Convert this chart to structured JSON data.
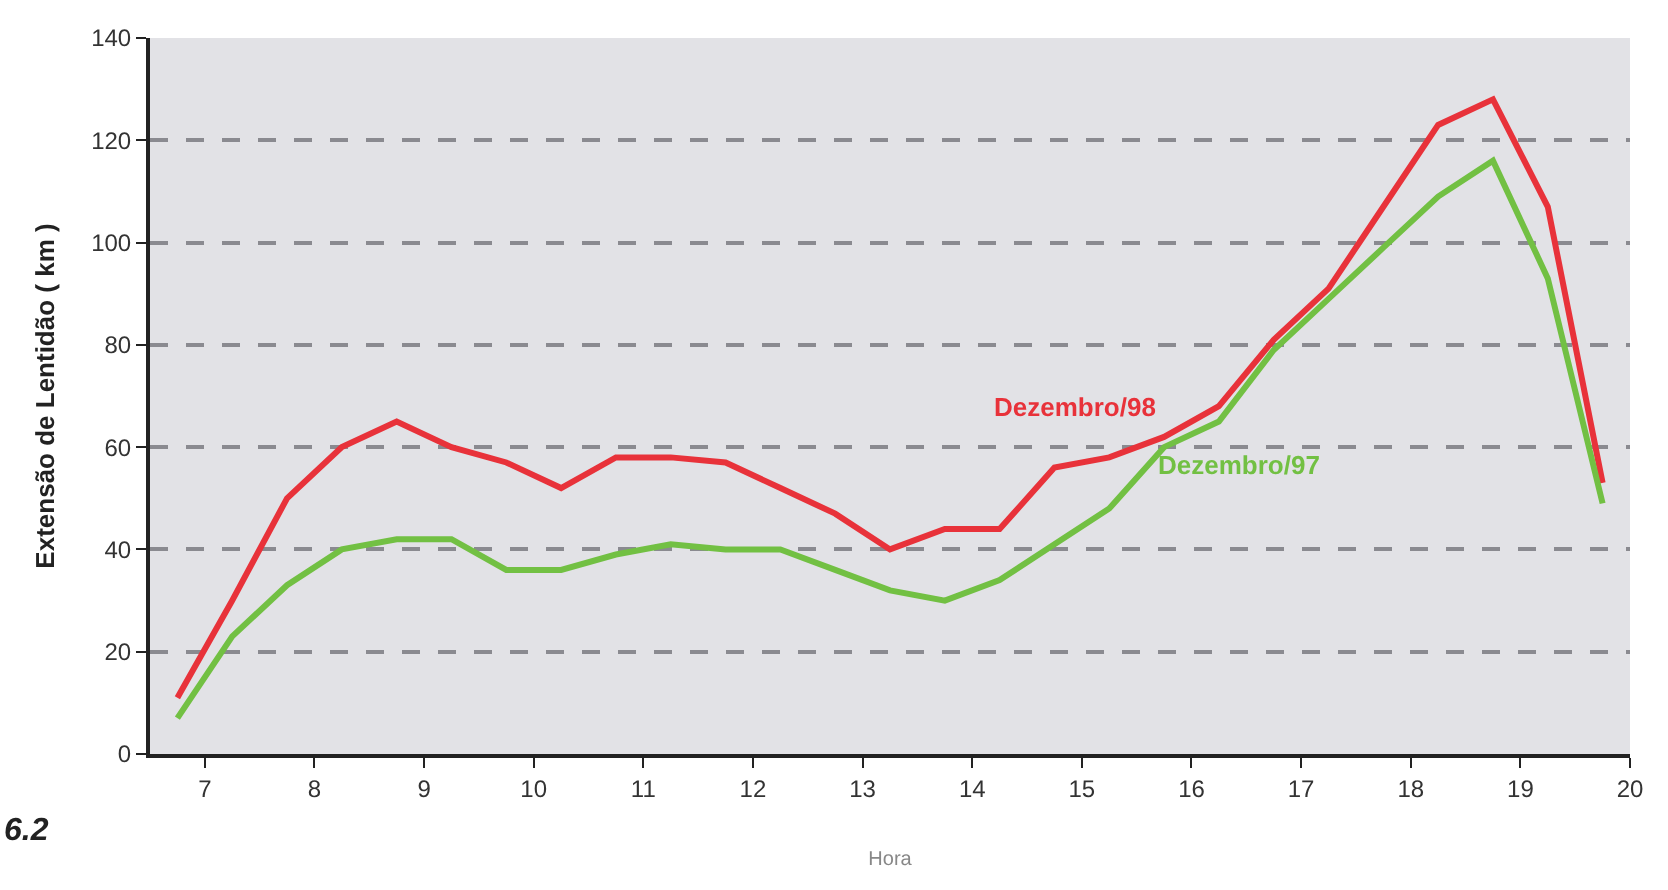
{
  "chart_data": {
    "type": "line",
    "xlabel": "Hora",
    "ylabel": "Extensão de Lentidão ( km )",
    "x": [
      6.75,
      7.25,
      7.75,
      8.25,
      8.75,
      9.25,
      9.75,
      10.25,
      10.75,
      11.25,
      11.75,
      12.25,
      12.75,
      13.25,
      13.75,
      14.25,
      14.75,
      15.25,
      15.75,
      16.25,
      16.75,
      17.25,
      17.75,
      18.25,
      18.75,
      19.25,
      19.75
    ],
    "series": [
      {
        "name": "Dezembro/98",
        "color": "#e8323a",
        "values": [
          11,
          30,
          50,
          60,
          65,
          60,
          57,
          52,
          58,
          58,
          57,
          52,
          47,
          40,
          44,
          44,
          56,
          58,
          62,
          68,
          81,
          91,
          107,
          123,
          128,
          107,
          53
        ]
      },
      {
        "name": "Dezembro/97",
        "color": "#72c043",
        "values": [
          7,
          23,
          33,
          40,
          42,
          42,
          36,
          36,
          39,
          41,
          40,
          40,
          36,
          32,
          30,
          34,
          41,
          48,
          60,
          65,
          79,
          89,
          99,
          109,
          116,
          93,
          49
        ]
      }
    ],
    "xlim": [
      6.5,
      20
    ],
    "xticks": [
      7,
      8,
      9,
      10,
      11,
      12,
      13,
      14,
      15,
      16,
      17,
      18,
      19,
      20
    ],
    "ylim": [
      0,
      140
    ],
    "yticks": [
      0,
      20,
      40,
      60,
      80,
      100,
      120,
      140
    ],
    "grid": "y",
    "line_style": "solid",
    "marker": "none",
    "legend": false,
    "annotations": [
      "6.2"
    ]
  }
}
